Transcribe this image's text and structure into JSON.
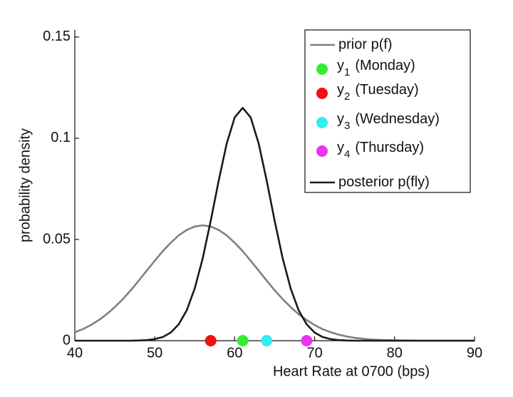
{
  "chart_data": {
    "type": "line",
    "xlabel": "Heart Rate at 0700 (bps)",
    "ylabel": "probability density",
    "xlim": [
      40,
      90
    ],
    "xticks": [
      40,
      50,
      60,
      70,
      80,
      90
    ],
    "ylim": [
      0,
      0.1535
    ],
    "yticks": [
      0,
      0.05,
      0.1,
      0.15
    ],
    "legend": "top-right",
    "x": [
      40,
      41,
      42,
      43,
      44,
      45,
      46,
      47,
      48,
      49,
      50,
      51,
      52,
      53,
      54,
      55,
      56,
      57,
      58,
      59,
      60,
      61,
      62,
      63,
      64,
      65,
      66,
      67,
      68,
      69,
      70,
      71,
      72,
      73,
      74,
      75,
      76,
      77,
      78,
      79,
      80,
      81,
      82,
      83,
      84,
      85,
      86,
      87,
      88,
      89,
      90
    ],
    "series": [
      {
        "name": "prior p(f)",
        "color": "#808080",
        "values": [
          0.0042,
          0.0057,
          0.0077,
          0.0102,
          0.0131,
          0.0166,
          0.0205,
          0.0249,
          0.0297,
          0.0346,
          0.0395,
          0.0442,
          0.0484,
          0.052,
          0.0547,
          0.0564,
          0.057,
          0.0564,
          0.0547,
          0.052,
          0.0484,
          0.0442,
          0.0395,
          0.0346,
          0.0297,
          0.0249,
          0.0205,
          0.0166,
          0.0131,
          0.0102,
          0.0077,
          0.0057,
          0.0042,
          0.003,
          0.0021,
          0.0014,
          0.001,
          0.0006,
          0.0004,
          0.0003,
          0.0002,
          0.0001,
          0.0001,
          0,
          0,
          0,
          0,
          0,
          0,
          0,
          0
        ]
      },
      {
        "symbol": "y",
        "index": "1",
        "name": "(Monday)",
        "color": "#33ee33",
        "point_x": 61,
        "point_y": 0
      },
      {
        "symbol": "y",
        "index": "2",
        "name": "(Tuesday)",
        "color": "#ee1111",
        "point_x": 57,
        "point_y": 0
      },
      {
        "symbol": "y",
        "index": "3",
        "name": "(Wednesday)",
        "color": "#33eeee",
        "point_x": 64,
        "point_y": 0
      },
      {
        "symbol": "y",
        "index": "4",
        "name": "(Thursday)",
        "color": "#ee33ee",
        "point_x": 69,
        "point_y": 0
      },
      {
        "name": "posterior p(fly)",
        "color": "#1a1a1a",
        "values": [
          0,
          0,
          0,
          0,
          0,
          0,
          0,
          0,
          0.0001,
          0.0003,
          0.0008,
          0.0018,
          0.004,
          0.0081,
          0.015,
          0.0258,
          0.0407,
          0.0592,
          0.0791,
          0.0974,
          0.1103,
          0.115,
          0.1103,
          0.0974,
          0.0791,
          0.0592,
          0.0407,
          0.0258,
          0.015,
          0.0081,
          0.004,
          0.0018,
          0.0008,
          0.0003,
          0.0001,
          0,
          0,
          0,
          0,
          0,
          0,
          0,
          0,
          0,
          0,
          0,
          0,
          0,
          0,
          0,
          0
        ]
      }
    ]
  }
}
